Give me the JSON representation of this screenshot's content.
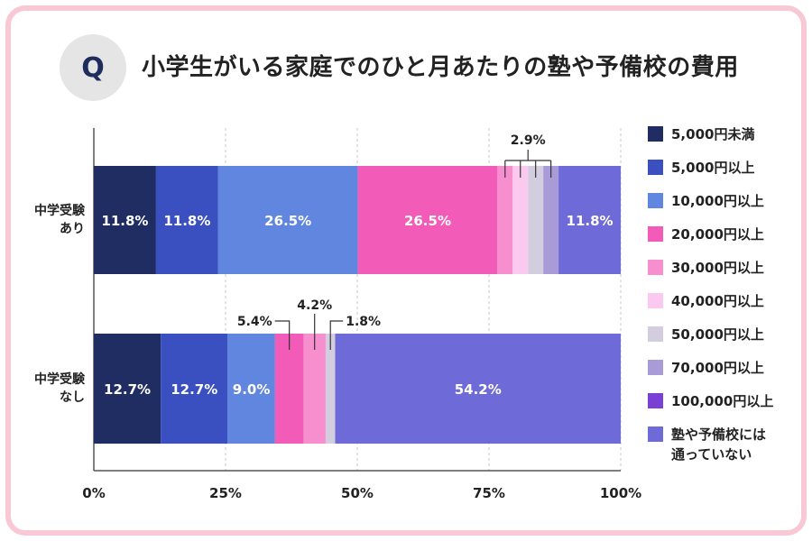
{
  "title": "小学生がいる家庭でのひと月あたりの塾や予備校の費用",
  "q_badge": "Q",
  "chart_data": {
    "type": "bar",
    "orientation": "horizontal",
    "stacked": true,
    "title": "小学生がいる家庭でのひと月あたりの塾や予備校の費用",
    "categories": [
      "中学受験あり",
      "中学受験なし"
    ],
    "category_lines": [
      [
        "中学受験",
        "あり"
      ],
      [
        "中学受験",
        "なし"
      ]
    ],
    "xlim": [
      0,
      100
    ],
    "x_ticks": [
      "0%",
      "25%",
      "50%",
      "75%",
      "100%"
    ],
    "grid": true,
    "legend_position": "right",
    "series": [
      {
        "name": "5,000円未満",
        "color": "#1f2d63",
        "values": [
          11.8,
          12.7
        ],
        "labels": [
          "11.8%",
          "12.7%"
        ]
      },
      {
        "name": "5,000円以上",
        "color": "#3a4fc0",
        "values": [
          11.8,
          12.7
        ],
        "labels": [
          "11.8%",
          "12.7%"
        ]
      },
      {
        "name": "10,000円以上",
        "color": "#6186e0",
        "values": [
          26.5,
          9.0
        ],
        "labels": [
          "26.5%",
          "9.0%"
        ]
      },
      {
        "name": "20,000円以上",
        "color": "#f25cb8",
        "values": [
          26.5,
          5.4
        ],
        "labels": [
          "26.5%",
          "5.4%"
        ]
      },
      {
        "name": "30,000円以上",
        "color": "#f78fcf",
        "values": [
          2.9,
          4.2
        ],
        "labels": [
          "2.9%",
          "4.2%"
        ]
      },
      {
        "name": "40,000円以上",
        "color": "#fbc8f0",
        "values": [
          2.9,
          0
        ],
        "labels": [
          "2.9%",
          ""
        ]
      },
      {
        "name": "50,000円以上",
        "color": "#d3cde0",
        "values": [
          2.9,
          1.8
        ],
        "labels": [
          "2.9%",
          "1.8%"
        ]
      },
      {
        "name": "70,000円以上",
        "color": "#a99ad8",
        "values": [
          2.9,
          0
        ],
        "labels": [
          "2.9%",
          ""
        ]
      },
      {
        "name": "100,000円以上",
        "color": "#7a3fd4",
        "values": [
          0,
          0
        ],
        "labels": [
          "",
          ""
        ]
      },
      {
        "name": "塾や予備校には通っていない",
        "color": "#6e6ad8",
        "values": [
          11.8,
          54.2
        ],
        "labels": [
          "11.8%",
          "54.2%"
        ]
      }
    ],
    "legend_lines": [
      [
        "5,000円未満"
      ],
      [
        "5,000円以上"
      ],
      [
        "10,000円以上"
      ],
      [
        "20,000円以上"
      ],
      [
        "30,000円以上"
      ],
      [
        "40,000円以上"
      ],
      [
        "50,000円以上"
      ],
      [
        "70,000円以上"
      ],
      [
        "100,000円以上"
      ],
      [
        "塾や予備校には",
        "通っていない"
      ]
    ],
    "callouts": [
      {
        "row": 0,
        "text": "2.9%",
        "segments": [
          4,
          5,
          6,
          7
        ]
      },
      {
        "row": 1,
        "text": "5.4%",
        "segments": [
          3
        ]
      },
      {
        "row": 1,
        "text": "4.2%",
        "segments": [
          4
        ]
      },
      {
        "row": 1,
        "text": "1.8%",
        "segments": [
          6
        ]
      }
    ]
  }
}
